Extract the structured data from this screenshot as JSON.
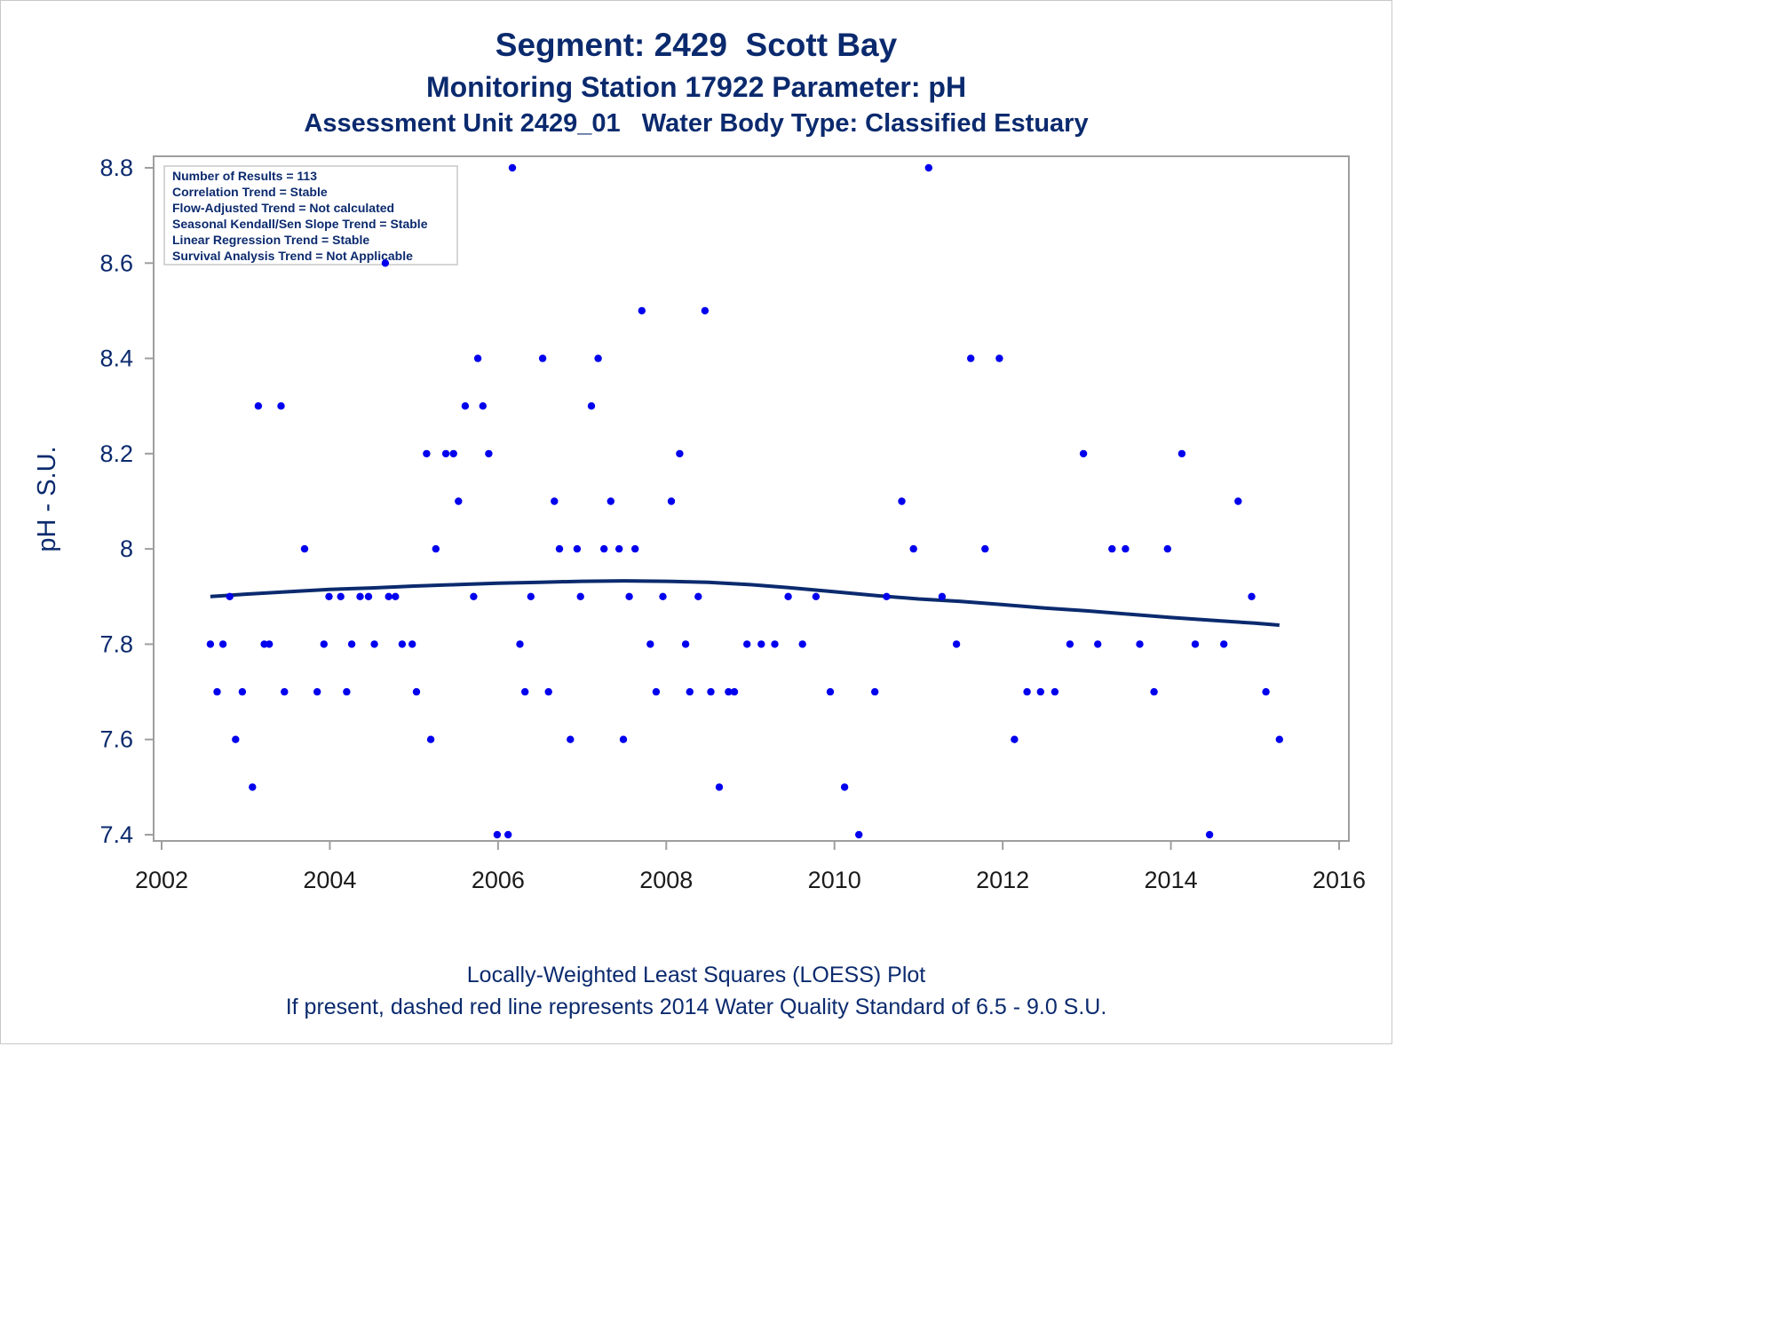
{
  "title": "Segment: 2429  Scott Bay",
  "subtitle": "Monitoring Station 17922 Parameter: pH",
  "subtitle2": "Assessment Unit 2429_01   Water Body Type: Classified Estuary",
  "footnote1": "Locally-Weighted Least Squares (LOESS) Plot",
  "footnote2": "If present, dashed red line represents 2014 Water Quality Standard of 6.5 - 9.0 S.U.",
  "stats": [
    "Number of Results = 113",
    "Correlation Trend = Stable",
    "Flow-Adjusted Trend = Not calculated",
    "Seasonal Kendall/Sen Slope Trend = Stable",
    "Linear Regression Trend = Stable",
    "Survival Analysis Trend = Not Applicable"
  ],
  "colors": {
    "text": "#0b2a6e",
    "points": "#0000ee",
    "loess": "#0b2a6e",
    "frame": "#9e9e9e"
  },
  "chart_data": {
    "type": "scatter",
    "xlabel": "",
    "ylabel": "pH - S.U.",
    "xlim": [
      2002,
      2016
    ],
    "ylim": [
      7.4,
      8.8
    ],
    "xticks": [
      2002,
      2004,
      2006,
      2008,
      2010,
      2012,
      2014,
      2016
    ],
    "yticks": [
      "7.4",
      "7.6",
      "7.8",
      "8",
      "8.2",
      "8.4",
      "8.6",
      "8.8"
    ],
    "grid": false,
    "series": [
      {
        "type": "scatter",
        "points": [
          [
            2002.58,
            7.8
          ],
          [
            2002.66,
            7.7
          ],
          [
            2002.73,
            7.8
          ],
          [
            2002.81,
            7.9
          ],
          [
            2002.88,
            7.6
          ],
          [
            2002.96,
            7.7
          ],
          [
            2003.08,
            7.5
          ],
          [
            2003.15,
            8.3
          ],
          [
            2003.22,
            7.8
          ],
          [
            2003.28,
            7.8
          ],
          [
            2003.42,
            8.3
          ],
          [
            2003.46,
            7.7
          ],
          [
            2003.7,
            8.0
          ],
          [
            2003.85,
            7.7
          ],
          [
            2003.93,
            7.8
          ],
          [
            2003.99,
            7.9
          ],
          [
            2004.13,
            7.9
          ],
          [
            2004.2,
            7.7
          ],
          [
            2004.26,
            7.8
          ],
          [
            2004.36,
            7.9
          ],
          [
            2004.46,
            7.9
          ],
          [
            2004.53,
            7.8
          ],
          [
            2004.66,
            8.6
          ],
          [
            2004.7,
            7.9
          ],
          [
            2004.78,
            7.9
          ],
          [
            2004.86,
            7.8
          ],
          [
            2004.98,
            7.8
          ],
          [
            2005.03,
            7.7
          ],
          [
            2005.15,
            8.2
          ],
          [
            2005.2,
            7.6
          ],
          [
            2005.26,
            8.0
          ],
          [
            2005.38,
            8.2
          ],
          [
            2005.47,
            8.2
          ],
          [
            2005.53,
            8.1
          ],
          [
            2005.61,
            8.3
          ],
          [
            2005.71,
            7.9
          ],
          [
            2005.76,
            8.4
          ],
          [
            2005.82,
            8.3
          ],
          [
            2005.89,
            8.2
          ],
          [
            2005.99,
            7.4
          ],
          [
            2006.12,
            7.4
          ],
          [
            2006.17,
            8.8
          ],
          [
            2006.26,
            7.8
          ],
          [
            2006.32,
            7.7
          ],
          [
            2006.39,
            7.9
          ],
          [
            2006.53,
            8.4
          ],
          [
            2006.6,
            7.7
          ],
          [
            2006.67,
            8.1
          ],
          [
            2006.73,
            8.0
          ],
          [
            2006.86,
            7.6
          ],
          [
            2006.94,
            8.0
          ],
          [
            2006.98,
            7.9
          ],
          [
            2007.11,
            8.3
          ],
          [
            2007.19,
            8.4
          ],
          [
            2007.26,
            8.0
          ],
          [
            2007.34,
            8.1
          ],
          [
            2007.44,
            8.0
          ],
          [
            2007.49,
            7.6
          ],
          [
            2007.56,
            7.9
          ],
          [
            2007.63,
            8.0
          ],
          [
            2007.71,
            8.5
          ],
          [
            2007.81,
            7.8
          ],
          [
            2007.88,
            7.7
          ],
          [
            2007.96,
            7.9
          ],
          [
            2008.06,
            8.1
          ],
          [
            2008.16,
            8.2
          ],
          [
            2008.23,
            7.8
          ],
          [
            2008.28,
            7.7
          ],
          [
            2008.38,
            7.9
          ],
          [
            2008.46,
            8.5
          ],
          [
            2008.53,
            7.7
          ],
          [
            2008.63,
            7.5
          ],
          [
            2008.74,
            7.7
          ],
          [
            2008.81,
            7.7
          ],
          [
            2008.96,
            7.8
          ],
          [
            2009.13,
            7.8
          ],
          [
            2009.29,
            7.8
          ],
          [
            2009.45,
            7.9
          ],
          [
            2009.62,
            7.8
          ],
          [
            2009.78,
            7.9
          ],
          [
            2009.95,
            7.7
          ],
          [
            2010.12,
            7.5
          ],
          [
            2010.29,
            7.4
          ],
          [
            2010.48,
            7.7
          ],
          [
            2010.62,
            7.9
          ],
          [
            2010.8,
            8.1
          ],
          [
            2010.94,
            8.0
          ],
          [
            2011.12,
            8.8
          ],
          [
            2011.28,
            7.9
          ],
          [
            2011.45,
            7.8
          ],
          [
            2011.62,
            8.4
          ],
          [
            2011.79,
            8.0
          ],
          [
            2011.96,
            8.4
          ],
          [
            2012.14,
            7.6
          ],
          [
            2012.29,
            7.7
          ],
          [
            2012.45,
            7.7
          ],
          [
            2012.62,
            7.7
          ],
          [
            2012.8,
            7.8
          ],
          [
            2012.96,
            8.2
          ],
          [
            2013.13,
            7.8
          ],
          [
            2013.3,
            8.0
          ],
          [
            2013.46,
            8.0
          ],
          [
            2013.63,
            7.8
          ],
          [
            2013.8,
            7.7
          ],
          [
            2013.96,
            8.0
          ],
          [
            2014.13,
            8.2
          ],
          [
            2014.29,
            7.8
          ],
          [
            2014.46,
            7.4
          ],
          [
            2014.63,
            7.8
          ],
          [
            2014.8,
            8.1
          ],
          [
            2014.96,
            7.9
          ],
          [
            2015.13,
            7.7
          ],
          [
            2015.29,
            7.6
          ]
        ]
      },
      {
        "type": "line",
        "points": [
          [
            2002.58,
            7.9
          ],
          [
            2003.0,
            7.905
          ],
          [
            2003.5,
            7.91
          ],
          [
            2004.0,
            7.915
          ],
          [
            2004.5,
            7.918
          ],
          [
            2005.0,
            7.922
          ],
          [
            2005.5,
            7.925
          ],
          [
            2006.0,
            7.928
          ],
          [
            2006.5,
            7.93
          ],
          [
            2007.0,
            7.932
          ],
          [
            2007.5,
            7.933
          ],
          [
            2008.0,
            7.932
          ],
          [
            2008.5,
            7.93
          ],
          [
            2009.0,
            7.925
          ],
          [
            2009.5,
            7.918
          ],
          [
            2010.0,
            7.91
          ],
          [
            2010.5,
            7.902
          ],
          [
            2011.0,
            7.895
          ],
          [
            2011.5,
            7.89
          ],
          [
            2012.0,
            7.883
          ],
          [
            2012.5,
            7.876
          ],
          [
            2013.0,
            7.87
          ],
          [
            2013.5,
            7.863
          ],
          [
            2014.0,
            7.856
          ],
          [
            2014.5,
            7.85
          ],
          [
            2015.0,
            7.844
          ],
          [
            2015.29,
            7.84
          ]
        ]
      }
    ]
  }
}
